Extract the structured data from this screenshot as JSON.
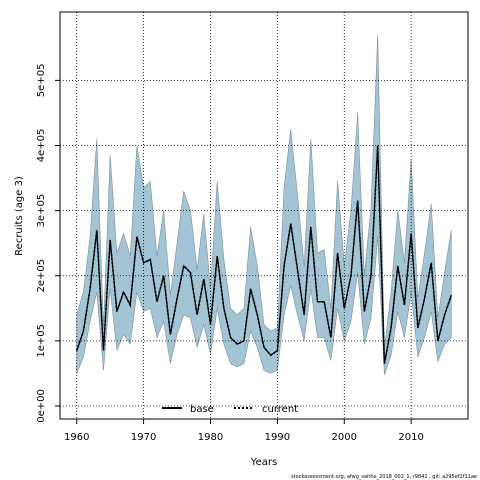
{
  "chart_data": {
    "type": "area",
    "xlabel": "Years",
    "ylabel": "Recruits (age 3)",
    "xlim": [
      1957.5,
      2018.5
    ],
    "ylim": [
      -20000,
      605000
    ],
    "x_ticks": [
      1960,
      1970,
      1980,
      1990,
      2000,
      2010
    ],
    "x_tick_labels": [
      "1960",
      "1970",
      "1980",
      "1990",
      "2000",
      "2010"
    ],
    "y_ticks": [
      0,
      100000,
      200000,
      300000,
      400000,
      500000
    ],
    "y_tick_labels": [
      "0e+00",
      "1e+05",
      "2e+05",
      "3e+05",
      "4e+05",
      "5e+05"
    ],
    "grid": true,
    "legend_position": "bottom-center",
    "band_color": "#a3c4d4",
    "band_edge_color": "#7a8f99",
    "x": [
      1960,
      1961,
      1962,
      1963,
      1964,
      1965,
      1966,
      1967,
      1968,
      1969,
      1970,
      1971,
      1972,
      1973,
      1974,
      1975,
      1976,
      1977,
      1978,
      1979,
      1980,
      1981,
      1982,
      1983,
      1984,
      1985,
      1986,
      1987,
      1988,
      1989,
      1990,
      1991,
      1992,
      1993,
      1994,
      1995,
      1996,
      1997,
      1998,
      1999,
      2000,
      2001,
      2002,
      2003,
      2004,
      2005,
      2006,
      2007,
      2008,
      2009,
      2010,
      2011,
      2012,
      2013,
      2014,
      2015,
      2016
    ],
    "series": [
      {
        "name": "base",
        "style": "solid",
        "color": "#000000",
        "values": [
          85000,
          115000,
          180000,
          270000,
          85000,
          255000,
          145000,
          175000,
          155000,
          260000,
          220000,
          225000,
          160000,
          200000,
          110000,
          165000,
          215000,
          205000,
          140000,
          195000,
          125000,
          230000,
          150000,
          105000,
          95000,
          100000,
          180000,
          140000,
          90000,
          78000,
          85000,
          215000,
          280000,
          210000,
          140000,
          275000,
          160000,
          160000,
          105000,
          235000,
          150000,
          200000,
          315000,
          145000,
          200000,
          400000,
          65000,
          120000,
          215000,
          155000,
          265000,
          120000,
          165000,
          220000,
          100000,
          140000,
          170000
        ]
      },
      {
        "name": "current",
        "style": "dotted",
        "color": "#000000",
        "values": [
          85000,
          115000,
          180000,
          270000,
          85000,
          255000,
          145000,
          175000,
          155000,
          260000,
          220000,
          225000,
          160000,
          200000,
          110000,
          165000,
          215000,
          205000,
          140000,
          195000,
          125000,
          230000,
          150000,
          105000,
          95000,
          100000,
          180000,
          140000,
          90000,
          78000,
          85000,
          215000,
          280000,
          210000,
          140000,
          275000,
          160000,
          160000,
          105000,
          235000,
          150000,
          200000,
          315000,
          145000,
          200000,
          400000,
          65000,
          120000,
          215000,
          155000,
          265000,
          120000,
          165000,
          220000,
          100000,
          140000,
          170000
        ]
      }
    ],
    "band_lower": [
      50000,
      75000,
      130000,
      175000,
      55000,
      180000,
      85000,
      110000,
      95000,
      175000,
      145000,
      150000,
      105000,
      130000,
      65000,
      110000,
      140000,
      135000,
      90000,
      125000,
      80000,
      150000,
      95000,
      65000,
      60000,
      65000,
      115000,
      90000,
      55000,
      50000,
      55000,
      140000,
      185000,
      140000,
      100000,
      180000,
      105000,
      105000,
      70000,
      150000,
      100000,
      130000,
      205000,
      95000,
      135000,
      260000,
      48000,
      78000,
      145000,
      105000,
      175000,
      75000,
      105000,
      145000,
      68000,
      95000,
      105000
    ],
    "band_upper": [
      140000,
      175000,
      260000,
      410000,
      120000,
      385000,
      235000,
      265000,
      230000,
      400000,
      335000,
      345000,
      230000,
      300000,
      170000,
      250000,
      330000,
      300000,
      210000,
      295000,
      180000,
      345000,
      225000,
      150000,
      140000,
      150000,
      275000,
      215000,
      125000,
      115000,
      120000,
      335000,
      425000,
      325000,
      215000,
      410000,
      235000,
      240000,
      150000,
      345000,
      215000,
      300000,
      450000,
      200000,
      305000,
      570000,
      88000,
      175000,
      300000,
      220000,
      380000,
      165000,
      235000,
      310000,
      135000,
      205000,
      270000
    ]
  },
  "footnote": "stockassessment.org, afwg_saithe_2018_002_1, r9842 , git: a295ef2f11ae"
}
